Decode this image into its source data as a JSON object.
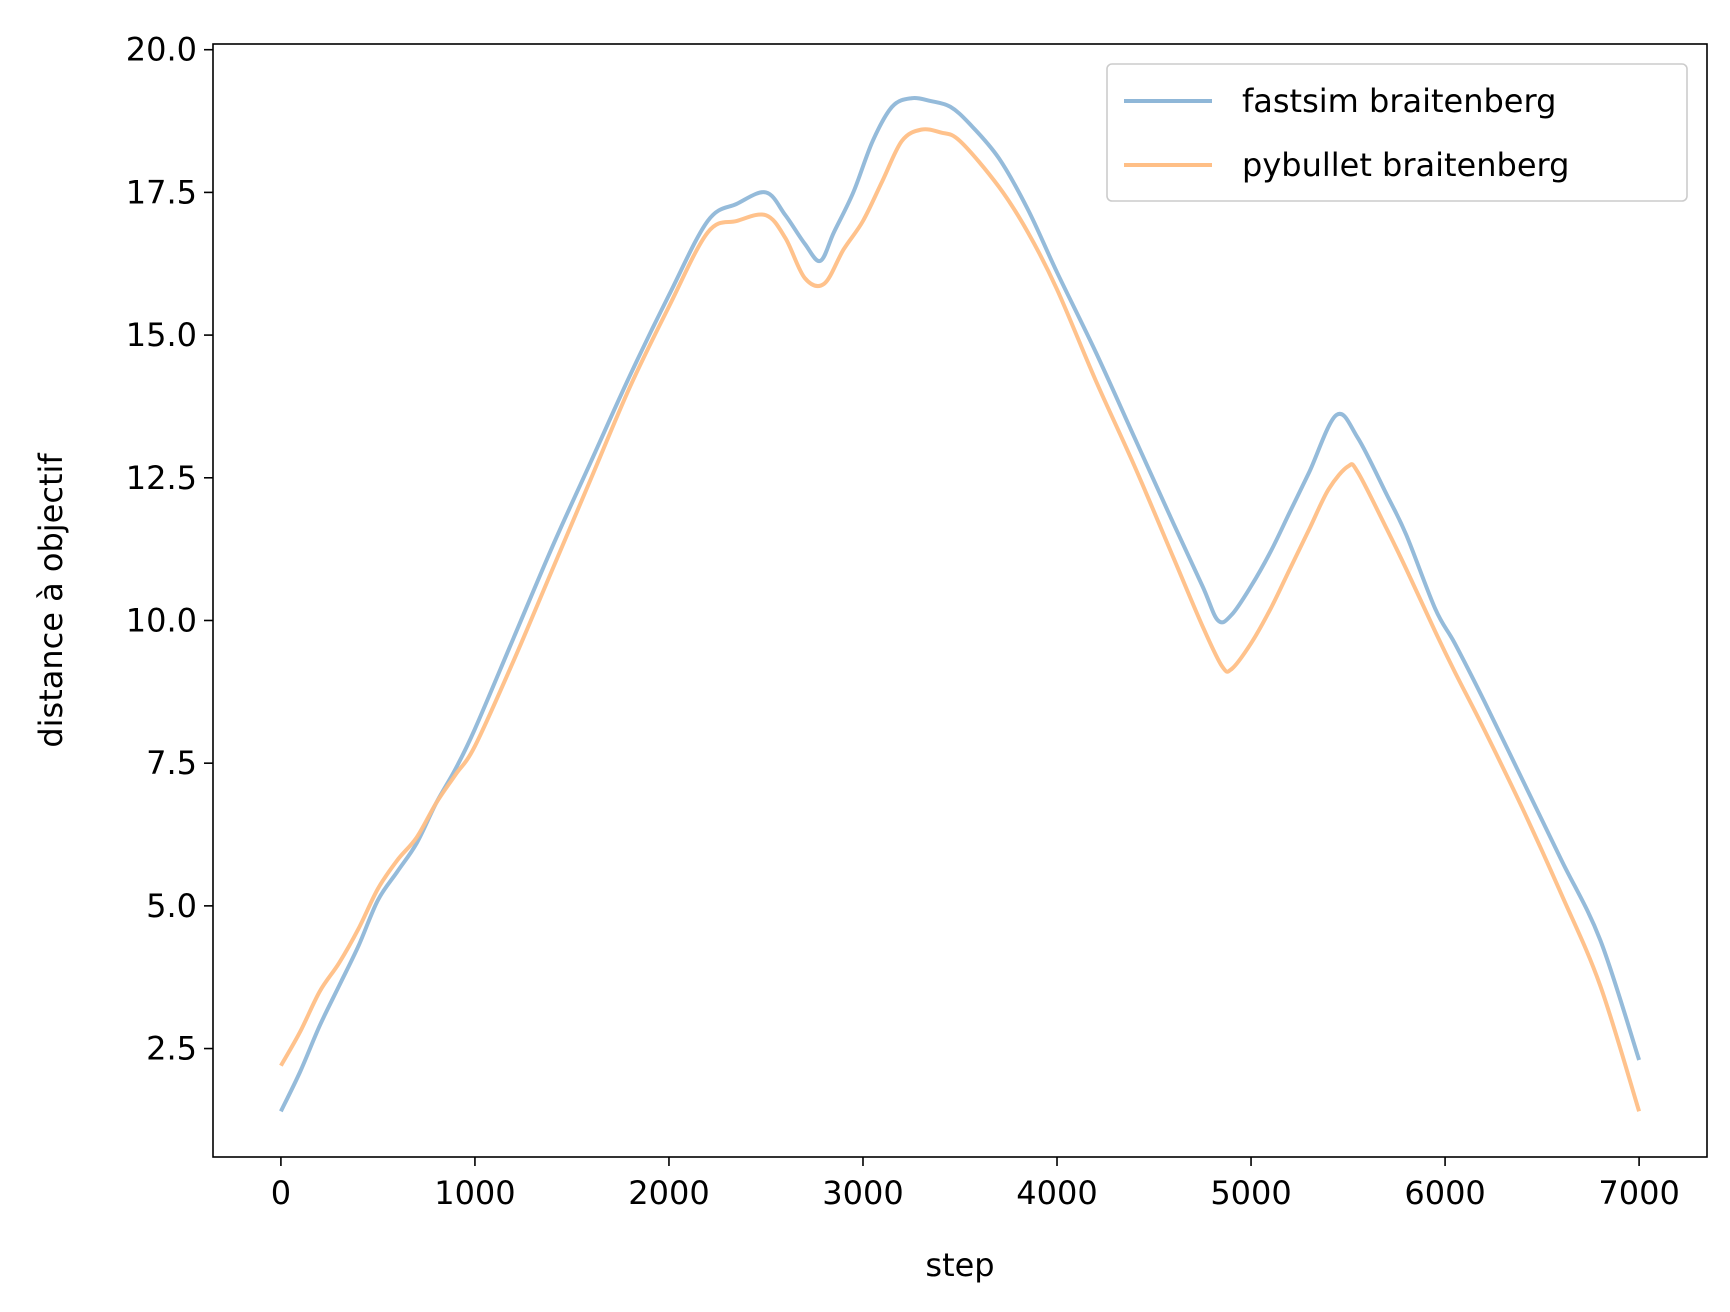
{
  "chart_data": {
    "type": "line",
    "title": "",
    "xlabel": "step",
    "ylabel": "distance à objectif",
    "xlim": [
      -350,
      7350
    ],
    "ylim": [
      0.6,
      20.1
    ],
    "xticks": [
      0,
      1000,
      2000,
      3000,
      4000,
      5000,
      6000,
      7000
    ],
    "xtick_labels": [
      "0",
      "1000",
      "2000",
      "3000",
      "4000",
      "5000",
      "6000",
      "7000"
    ],
    "yticks": [
      2.5,
      5.0,
      7.5,
      10.0,
      12.5,
      15.0,
      17.5,
      20.0
    ],
    "ytick_labels": [
      "2.5",
      "5.0",
      "7.5",
      "10.0",
      "12.5",
      "15.0",
      "17.5",
      "20.0"
    ],
    "grid": false,
    "legend_position": "top-right",
    "series": [
      {
        "name": "fastsim braitenberg",
        "color": "#8fb7d8",
        "x": [
          0,
          100,
          200,
          300,
          400,
          500,
          600,
          700,
          800,
          900,
          1000,
          1200,
          1400,
          1600,
          1800,
          2000,
          2200,
          2350,
          2500,
          2600,
          2700,
          2780,
          2850,
          2950,
          3050,
          3150,
          3250,
          3350,
          3450,
          3550,
          3700,
          3850,
          4000,
          4200,
          4400,
          4600,
          4750,
          4830,
          4900,
          5000,
          5100,
          5200,
          5300,
          5440,
          5550,
          5700,
          5800,
          5950,
          6050,
          6200,
          6400,
          6600,
          6800,
          7000
        ],
        "values": [
          1.4,
          2.1,
          2.9,
          3.6,
          4.3,
          5.1,
          5.6,
          6.1,
          6.8,
          7.4,
          8.1,
          9.7,
          11.3,
          12.8,
          14.3,
          15.7,
          17.0,
          17.3,
          17.5,
          17.1,
          16.6,
          16.3,
          16.8,
          17.5,
          18.4,
          19.0,
          19.15,
          19.1,
          19.0,
          18.7,
          18.1,
          17.2,
          16.1,
          14.7,
          13.2,
          11.7,
          10.6,
          10.0,
          10.1,
          10.6,
          11.2,
          11.9,
          12.6,
          13.6,
          13.2,
          12.2,
          11.5,
          10.2,
          9.6,
          8.6,
          7.2,
          5.8,
          4.4,
          2.3
        ]
      },
      {
        "name": "pybullet braitenberg",
        "color": "#ffbf86",
        "x": [
          0,
          100,
          200,
          300,
          400,
          500,
          600,
          700,
          800,
          900,
          1000,
          1200,
          1400,
          1600,
          1800,
          2000,
          2200,
          2350,
          2500,
          2600,
          2700,
          2800,
          2900,
          3000,
          3100,
          3200,
          3300,
          3400,
          3500,
          3700,
          3850,
          4000,
          4200,
          4400,
          4600,
          4750,
          4850,
          4900,
          5000,
          5100,
          5200,
          5300,
          5400,
          5500,
          5550,
          5700,
          5800,
          5950,
          6050,
          6200,
          6400,
          6600,
          6800,
          7000
        ],
        "values": [
          2.2,
          2.8,
          3.5,
          4.0,
          4.6,
          5.3,
          5.8,
          6.2,
          6.8,
          7.3,
          7.8,
          9.3,
          10.9,
          12.5,
          14.1,
          15.5,
          16.8,
          17.0,
          17.1,
          16.7,
          16.0,
          15.9,
          16.5,
          17.0,
          17.7,
          18.4,
          18.6,
          18.55,
          18.4,
          17.6,
          16.8,
          15.8,
          14.2,
          12.7,
          11.1,
          9.9,
          9.2,
          9.15,
          9.6,
          10.2,
          10.9,
          11.6,
          12.3,
          12.7,
          12.6,
          11.6,
          10.9,
          9.8,
          9.1,
          8.1,
          6.7,
          5.2,
          3.6,
          1.4
        ]
      }
    ]
  }
}
